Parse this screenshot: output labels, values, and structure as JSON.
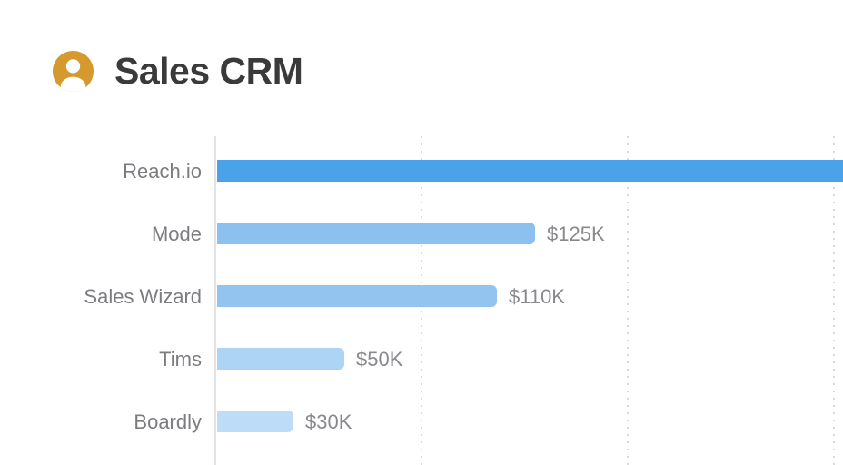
{
  "header": {
    "title": "Sales CRM"
  },
  "icons": {
    "user_icon": "user-avatar",
    "user_icon_color": "#D6992D"
  },
  "chart_data": {
    "type": "bar",
    "orientation": "horizontal",
    "title": "Sales CRM",
    "categories": [
      "Reach.io",
      "Mode",
      "Sales Wizard",
      "Tims",
      "Boardly"
    ],
    "values_k_usd": [
      null,
      125,
      110,
      50,
      30
    ],
    "value_labels": [
      "",
      "$125K",
      "$110K",
      "$50K",
      "$30K"
    ],
    "clipped": [
      true,
      false,
      false,
      false,
      false
    ],
    "bar_colors": [
      "#4AA2E9",
      "#8CC0EF",
      "#93C4F0",
      "#AED4F5",
      "#BCDCF8"
    ],
    "unit": "K USD",
    "xlabel": "",
    "ylabel": "",
    "axis": {
      "x_visible_max_k_usd": 245,
      "tick_labels_visible": false,
      "gridlines": "vertical dotted, evenly spaced, unlabeled",
      "axis_line": "solid light gray on left"
    },
    "legend": "none"
  }
}
